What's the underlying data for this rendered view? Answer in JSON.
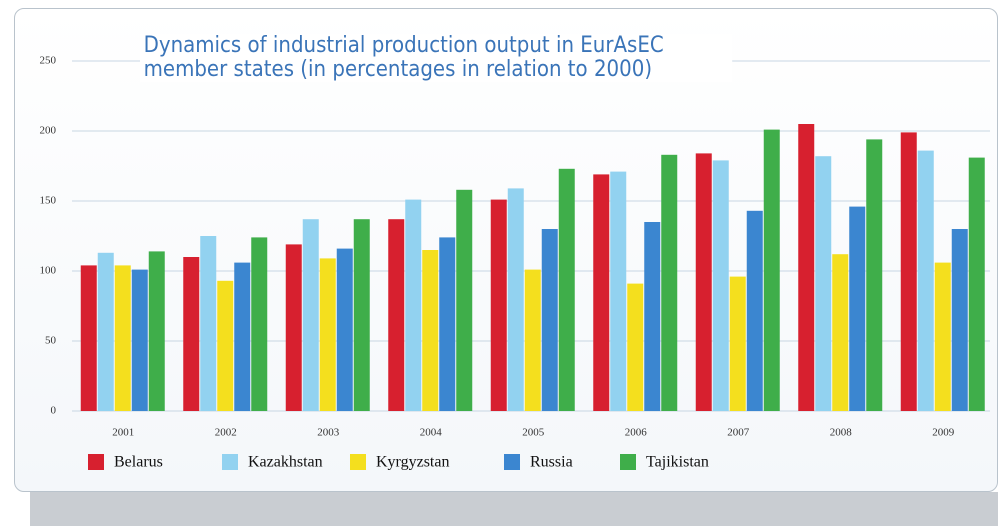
{
  "chart_data": {
    "type": "bar",
    "title": "Dynamics of industrial production output in EurAsEC member states (in percentages in relation to 2000)",
    "categories": [
      "2001",
      "2002",
      "2003",
      "2004",
      "2005",
      "2006",
      "2007",
      "2008",
      "2009"
    ],
    "series": [
      {
        "name": "Belarus",
        "color": "#d7202f",
        "values": [
          104,
          110,
          119,
          137,
          151,
          169,
          184,
          205,
          199
        ]
      },
      {
        "name": "Kazakhstan",
        "color": "#92d2f0",
        "values": [
          113,
          125,
          137,
          151,
          159,
          171,
          179,
          182,
          186
        ]
      },
      {
        "name": "Kyrgyzstan",
        "color": "#f4df1e",
        "values": [
          104,
          93,
          109,
          115,
          101,
          91,
          96,
          112,
          106
        ]
      },
      {
        "name": "Russia",
        "color": "#3b86d0",
        "values": [
          101,
          106,
          116,
          124,
          130,
          135,
          143,
          146,
          130
        ]
      },
      {
        "name": "Tajikistan",
        "color": "#3fae4a",
        "values": [
          114,
          124,
          137,
          158,
          173,
          183,
          201,
          194,
          181
        ]
      }
    ],
    "ylim": [
      0,
      250
    ],
    "yticks": [
      0,
      50,
      100,
      150,
      200,
      250
    ],
    "grid": true
  }
}
